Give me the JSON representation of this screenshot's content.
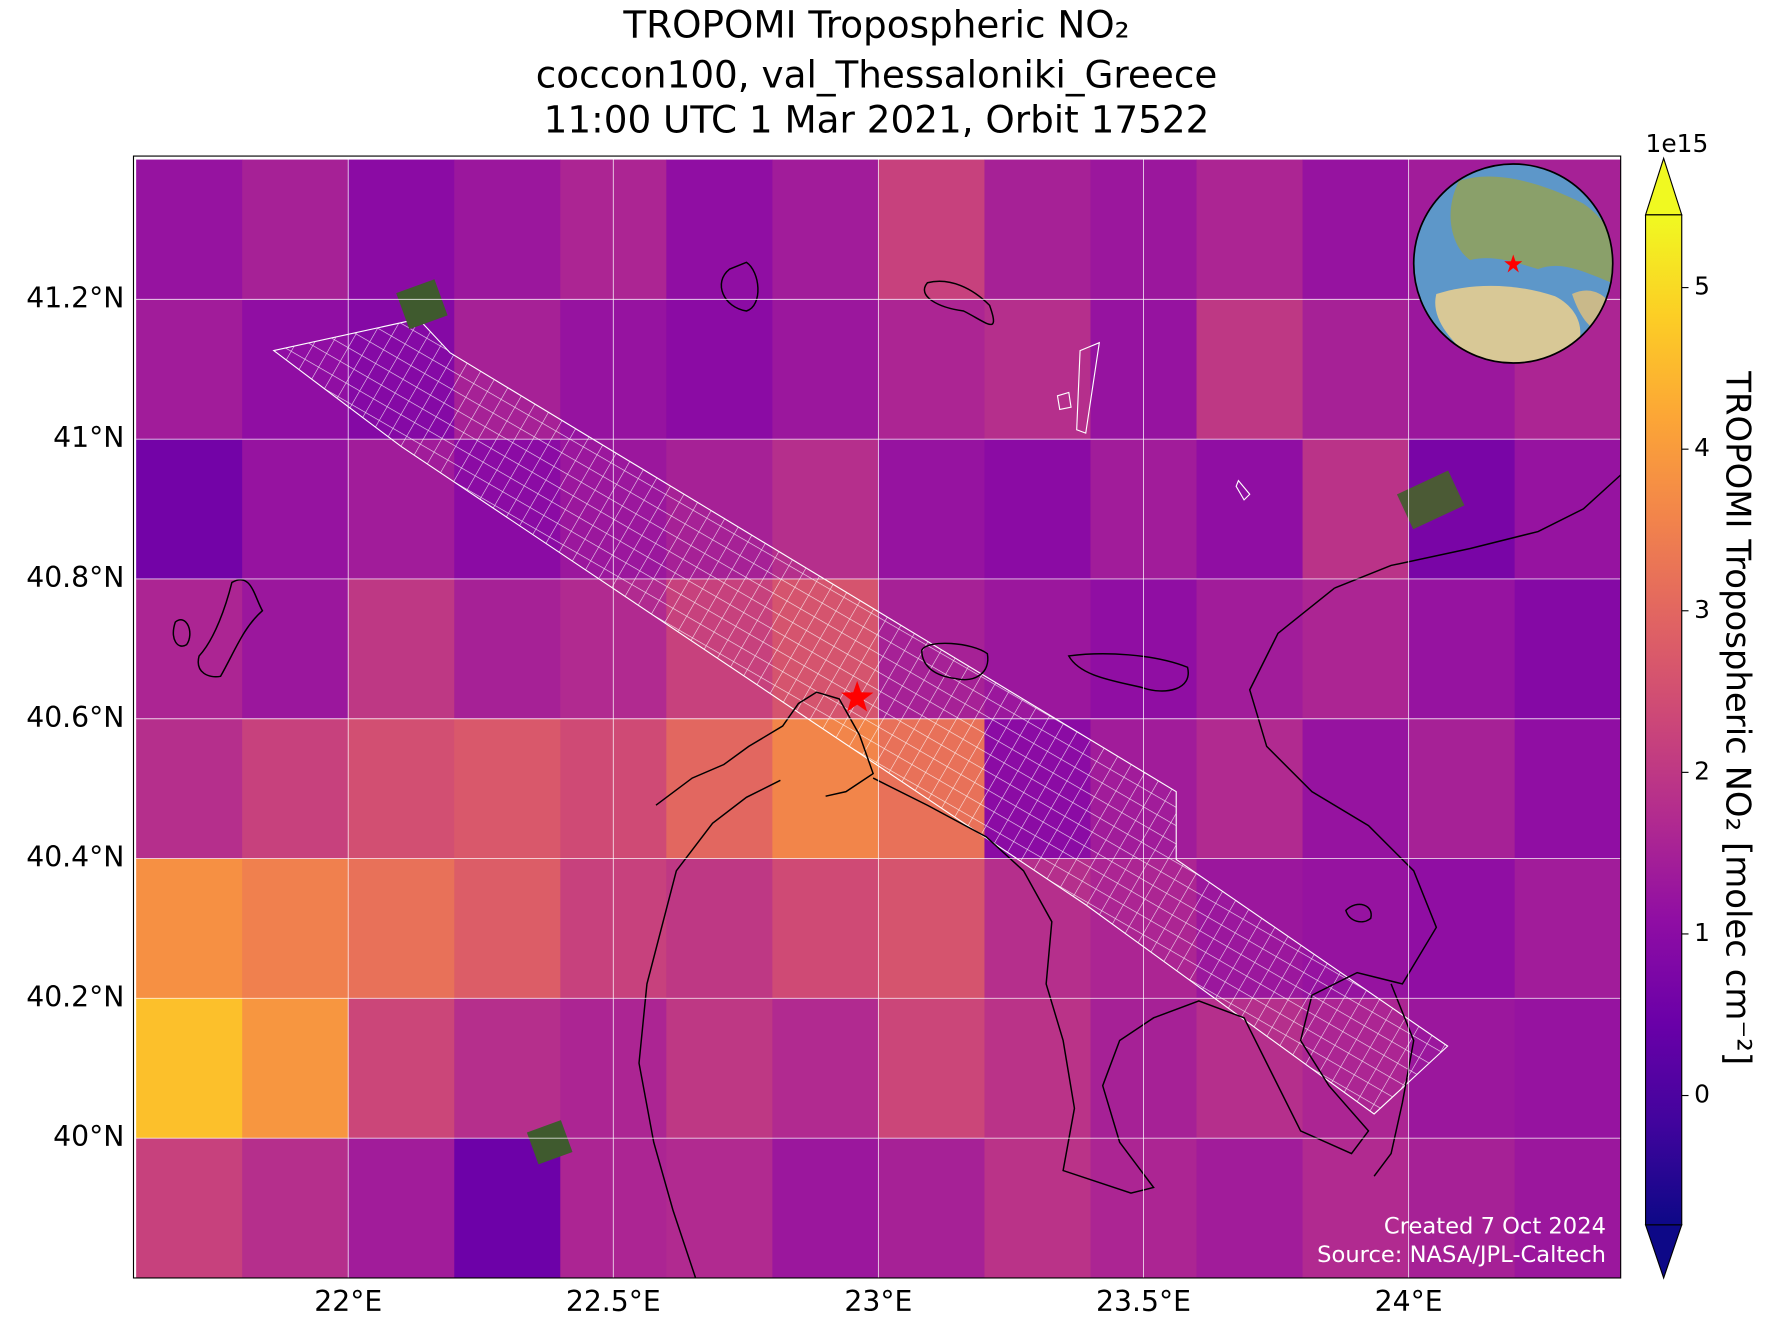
{
  "title": [
    "TROPOMI Tropospheric NO₂",
    "coccon100, val_Thessaloniki_Greece",
    "11:00 UTC 1 Mar 2021, Orbit 17522"
  ],
  "map": {
    "xlim": [
      21.595,
      24.4
    ],
    "ylim": [
      39.8,
      41.405
    ],
    "xticks": [
      {
        "value": 22,
        "label": "22°E"
      },
      {
        "value": 22.5,
        "label": "22.5°E"
      },
      {
        "value": 23,
        "label": "23°E"
      },
      {
        "value": 23.5,
        "label": "23.5°E"
      },
      {
        "value": 24,
        "label": "24°E"
      }
    ],
    "yticks": [
      {
        "value": 40,
        "label": "40°N"
      },
      {
        "value": 40.2,
        "label": "40.2°N"
      },
      {
        "value": 40.4,
        "label": "40.4°N"
      },
      {
        "value": 40.6,
        "label": "40.6°N"
      },
      {
        "value": 40.8,
        "label": "40.8°N"
      },
      {
        "value": 41,
        "label": "41°N"
      },
      {
        "value": 41.2,
        "label": "41.2°N"
      }
    ],
    "grid": true,
    "cells": {
      "lon_edges": [
        21.6,
        21.8,
        22.0,
        22.2,
        22.4,
        22.6,
        22.8,
        23.0,
        23.2,
        23.4,
        23.6,
        23.8,
        24.0,
        24.2,
        24.4
      ],
      "lat_edges": [
        41.4,
        41.2,
        41.0,
        40.8,
        40.6,
        40.4,
        40.2,
        40.0,
        39.8
      ],
      "values": [
        [
          1.2,
          1.5,
          1.0,
          1.3,
          1.6,
          1.1,
          1.4,
          2.2,
          1.5,
          1.3,
          1.6,
          1.2,
          1.4,
          1.5
        ],
        [
          1.4,
          1.1,
          0.9,
          1.5,
          1.2,
          1.0,
          1.3,
          1.6,
          1.8,
          1.2,
          2.0,
          1.5,
          1.3,
          1.6
        ],
        [
          0.6,
          1.2,
          1.4,
          1.0,
          1.3,
          1.5,
          1.8,
          1.2,
          1.0,
          1.4,
          1.1,
          1.9,
          0.7,
          1.2
        ],
        [
          1.6,
          1.3,
          2.0,
          1.5,
          1.7,
          2.2,
          2.6,
          1.5,
          1.3,
          1.1,
          1.4,
          1.6,
          1.2,
          0.9
        ],
        [
          1.8,
          2.2,
          2.5,
          2.7,
          2.4,
          3.0,
          3.6,
          3.2,
          1.0,
          1.4,
          1.7,
          1.2,
          1.5,
          1.1
        ],
        [
          3.8,
          3.5,
          3.2,
          2.8,
          2.2,
          2.0,
          2.4,
          2.6,
          1.8,
          1.6,
          1.3,
          1.2,
          1.1,
          1.4
        ],
        [
          4.6,
          3.9,
          2.3,
          1.8,
          1.6,
          2.0,
          1.7,
          2.3,
          1.9,
          1.5,
          1.8,
          1.6,
          1.3,
          1.2
        ],
        [
          2.2,
          1.8,
          1.4,
          0.5,
          1.6,
          1.7,
          1.3,
          1.5,
          1.9,
          1.6,
          1.4,
          1.7,
          1.5,
          1.3
        ]
      ]
    },
    "site": {
      "lon": 22.96,
      "lat": 40.63
    }
  },
  "colorbar": {
    "label": "TROPOMI Tropospheric NO₂ [molec cm⁻²]",
    "exponent": "1e15",
    "lim": [
      -0.8,
      5.45
    ],
    "ticks": [
      0,
      1,
      2,
      3,
      4,
      5
    ],
    "colormap": "plasma"
  },
  "credits": [
    "Created 7 Oct 2024",
    "Source: NASA/JPL-Caltech"
  ]
}
